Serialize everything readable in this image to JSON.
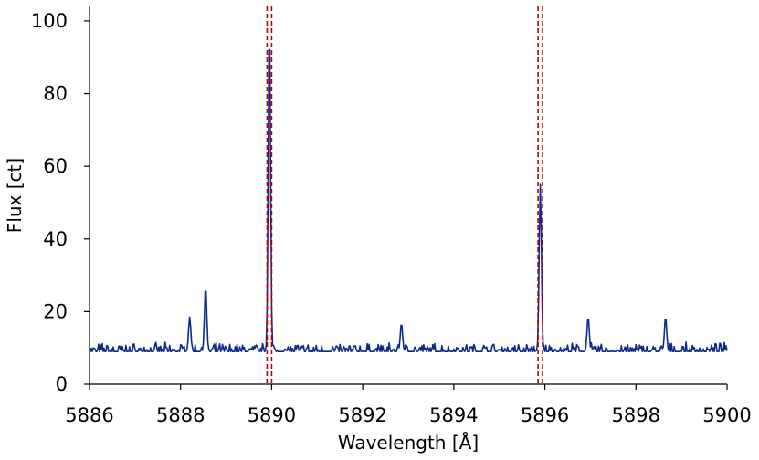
{
  "chart_data": {
    "type": "line",
    "title": "",
    "xlabel": "Wavelength [Å]",
    "ylabel": "Flux [ct]",
    "xlim": [
      5886,
      5900
    ],
    "ylim": [
      0,
      104
    ],
    "xticks": [
      "5886",
      "5888",
      "5890",
      "5892",
      "5894",
      "5896",
      "5898",
      "5900"
    ],
    "yticks": [
      "0",
      "20",
      "40",
      "60",
      "80",
      "100"
    ],
    "grid": false,
    "colors": {
      "line": "#0d2a8a",
      "marker": "#b30000"
    },
    "baseline_level": 9,
    "reference_lines": [
      {
        "x": 5889.9,
        "color": "#b30000",
        "style": "dashed"
      },
      {
        "x": 5890.0,
        "color": "#b30000",
        "style": "dashed"
      },
      {
        "x": 5895.85,
        "color": "#b30000",
        "style": "dashed"
      },
      {
        "x": 5895.95,
        "color": "#b30000",
        "style": "dashed"
      }
    ],
    "series": [
      {
        "peaks": [
          {
            "x": 5888.2,
            "y": 18.5
          },
          {
            "x": 5888.55,
            "y": 27
          },
          {
            "x": 5889.95,
            "y": 99
          },
          {
            "x": 5892.85,
            "y": 16.8
          },
          {
            "x": 5895.9,
            "y": 55
          },
          {
            "x": 5896.95,
            "y": 18.5
          },
          {
            "x": 5898.65,
            "y": 18.5
          }
        ]
      }
    ]
  }
}
